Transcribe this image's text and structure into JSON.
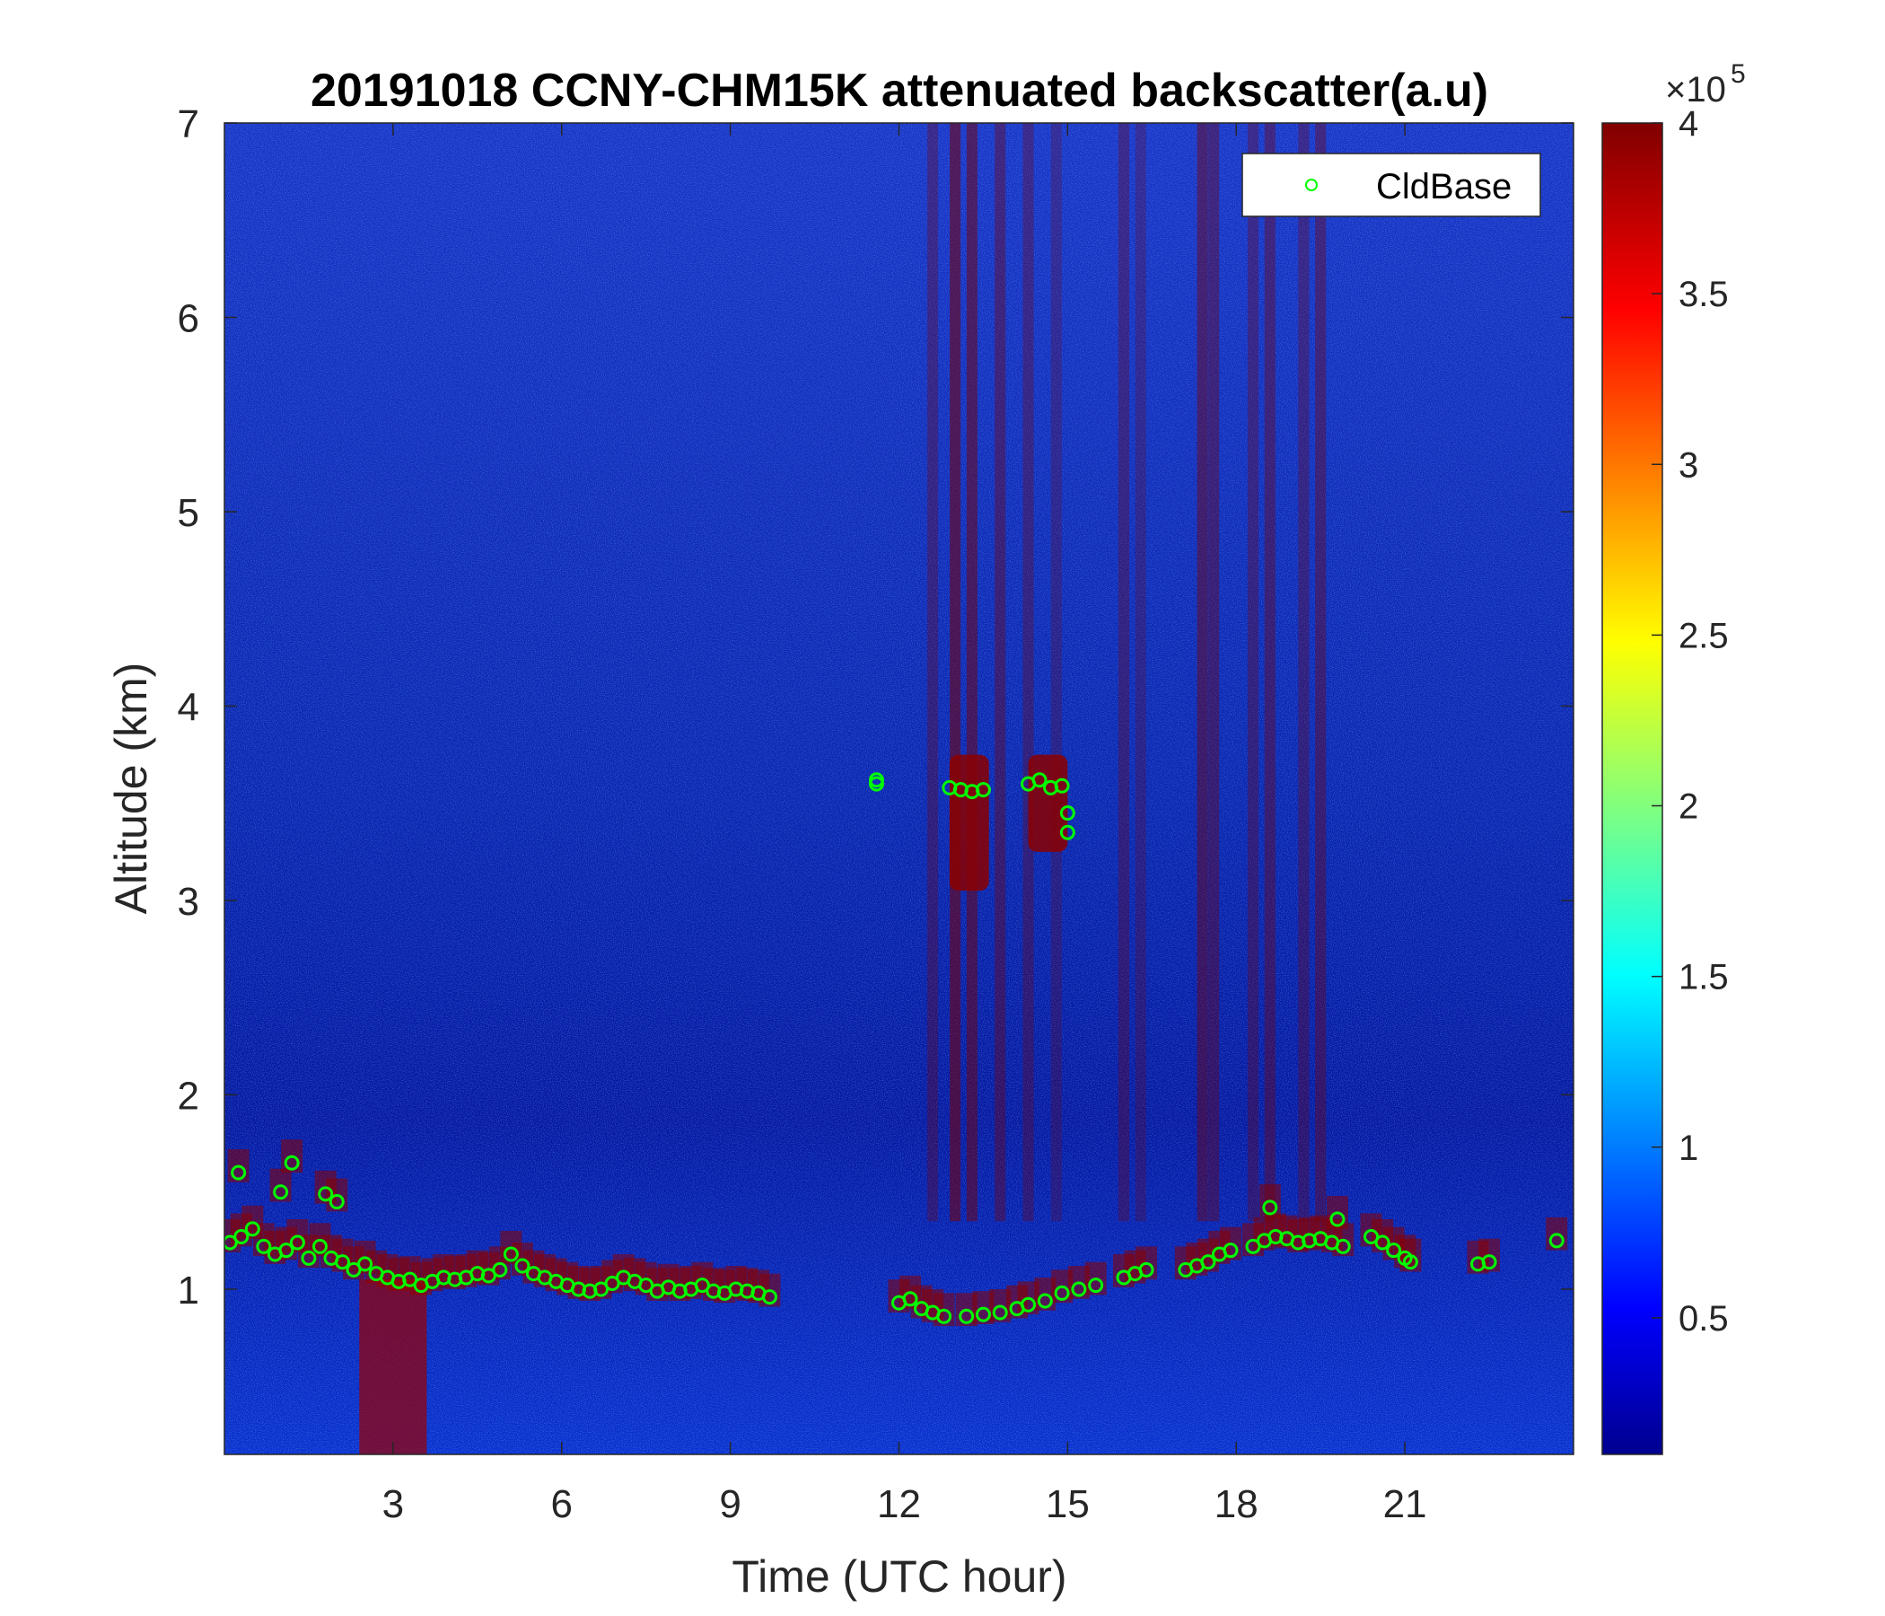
{
  "chart_data": {
    "type": "heatmap",
    "title": "20191018 CCNY-CHM15K attenuated backscatter(a.u)",
    "xlabel": "Time (UTC hour)",
    "ylabel": "Altitude (km)",
    "xlim": [
      0,
      24
    ],
    "ylim": [
      0.15,
      7
    ],
    "xticks": [
      "3",
      "6",
      "9",
      "12",
      "15",
      "18",
      "21"
    ],
    "yticks": [
      "1",
      "2",
      "3",
      "4",
      "5",
      "6",
      "7"
    ],
    "colormap": "jet",
    "colorbar": {
      "range": [
        0.1,
        4
      ],
      "ticks": [
        "0.5",
        "1",
        "1.5",
        "2",
        "2.5",
        "3",
        "3.5",
        "4"
      ],
      "exponent_base": "×10",
      "exponent": "5"
    },
    "legend": {
      "label": "CldBase",
      "placement": "top-right",
      "marker_color": "#00ff00"
    },
    "series": [
      {
        "name": "CldBase",
        "type": "scatter",
        "points": [
          [
            0.1,
            1.24
          ],
          [
            0.3,
            1.27
          ],
          [
            0.5,
            1.31
          ],
          [
            0.7,
            1.22
          ],
          [
            0.9,
            1.18
          ],
          [
            1.1,
            1.2
          ],
          [
            1.3,
            1.24
          ],
          [
            1.5,
            1.16
          ],
          [
            1.7,
            1.22
          ],
          [
            1.9,
            1.16
          ],
          [
            2.1,
            1.14
          ],
          [
            2.3,
            1.1
          ],
          [
            2.5,
            1.13
          ],
          [
            2.7,
            1.08
          ],
          [
            2.9,
            1.06
          ],
          [
            3.1,
            1.04
          ],
          [
            3.3,
            1.05
          ],
          [
            3.5,
            1.02
          ],
          [
            3.7,
            1.04
          ],
          [
            3.9,
            1.06
          ],
          [
            4.1,
            1.05
          ],
          [
            4.3,
            1.06
          ],
          [
            4.5,
            1.08
          ],
          [
            4.7,
            1.07
          ],
          [
            4.9,
            1.1
          ],
          [
            5.1,
            1.18
          ],
          [
            5.3,
            1.12
          ],
          [
            5.5,
            1.08
          ],
          [
            5.7,
            1.06
          ],
          [
            5.9,
            1.04
          ],
          [
            6.1,
            1.02
          ],
          [
            6.3,
            1.0
          ],
          [
            6.5,
            0.99
          ],
          [
            6.7,
            1.0
          ],
          [
            6.9,
            1.03
          ],
          [
            7.1,
            1.06
          ],
          [
            7.3,
            1.04
          ],
          [
            7.5,
            1.02
          ],
          [
            7.7,
            0.99
          ],
          [
            7.9,
            1.01
          ],
          [
            8.1,
            0.99
          ],
          [
            8.3,
            1.0
          ],
          [
            8.5,
            1.02
          ],
          [
            8.7,
            0.99
          ],
          [
            8.9,
            0.98
          ],
          [
            9.1,
            1.0
          ],
          [
            9.3,
            0.99
          ],
          [
            9.5,
            0.98
          ],
          [
            9.7,
            0.96
          ],
          [
            0.25,
            1.6
          ],
          [
            1.2,
            1.65
          ],
          [
            1.8,
            1.49
          ],
          [
            2.0,
            1.45
          ],
          [
            1.0,
            1.5
          ],
          [
            11.6,
            3.6
          ],
          [
            11.6,
            3.62
          ],
          [
            12.0,
            0.93
          ],
          [
            12.2,
            0.95
          ],
          [
            12.4,
            0.9
          ],
          [
            12.6,
            0.88
          ],
          [
            12.8,
            0.86
          ],
          [
            13.2,
            0.86
          ],
          [
            13.5,
            0.87
          ],
          [
            13.8,
            0.88
          ],
          [
            14.1,
            0.9
          ],
          [
            14.3,
            0.92
          ],
          [
            14.6,
            0.94
          ],
          [
            14.9,
            0.98
          ],
          [
            15.2,
            1.0
          ],
          [
            15.5,
            1.02
          ],
          [
            16.0,
            1.06
          ],
          [
            16.2,
            1.08
          ],
          [
            16.4,
            1.1
          ],
          [
            12.9,
            3.58
          ],
          [
            13.1,
            3.57
          ],
          [
            13.3,
            3.56
          ],
          [
            13.5,
            3.57
          ],
          [
            14.3,
            3.6
          ],
          [
            14.5,
            3.62
          ],
          [
            14.7,
            3.58
          ],
          [
            14.9,
            3.59
          ],
          [
            15.0,
            3.45
          ],
          [
            15.0,
            3.35
          ],
          [
            17.1,
            1.1
          ],
          [
            17.3,
            1.12
          ],
          [
            17.5,
            1.14
          ],
          [
            17.7,
            1.18
          ],
          [
            17.9,
            1.2
          ],
          [
            18.3,
            1.22
          ],
          [
            18.5,
            1.25
          ],
          [
            18.7,
            1.27
          ],
          [
            18.9,
            1.26
          ],
          [
            19.1,
            1.24
          ],
          [
            19.3,
            1.25
          ],
          [
            19.5,
            1.26
          ],
          [
            19.7,
            1.24
          ],
          [
            19.9,
            1.22
          ],
          [
            18.6,
            1.42
          ],
          [
            19.8,
            1.36
          ],
          [
            20.4,
            1.27
          ],
          [
            20.6,
            1.24
          ],
          [
            20.8,
            1.2
          ],
          [
            21.0,
            1.16
          ],
          [
            21.1,
            1.14
          ],
          [
            22.3,
            1.13
          ],
          [
            22.5,
            1.14
          ],
          [
            23.7,
            1.25
          ]
        ]
      }
    ]
  }
}
